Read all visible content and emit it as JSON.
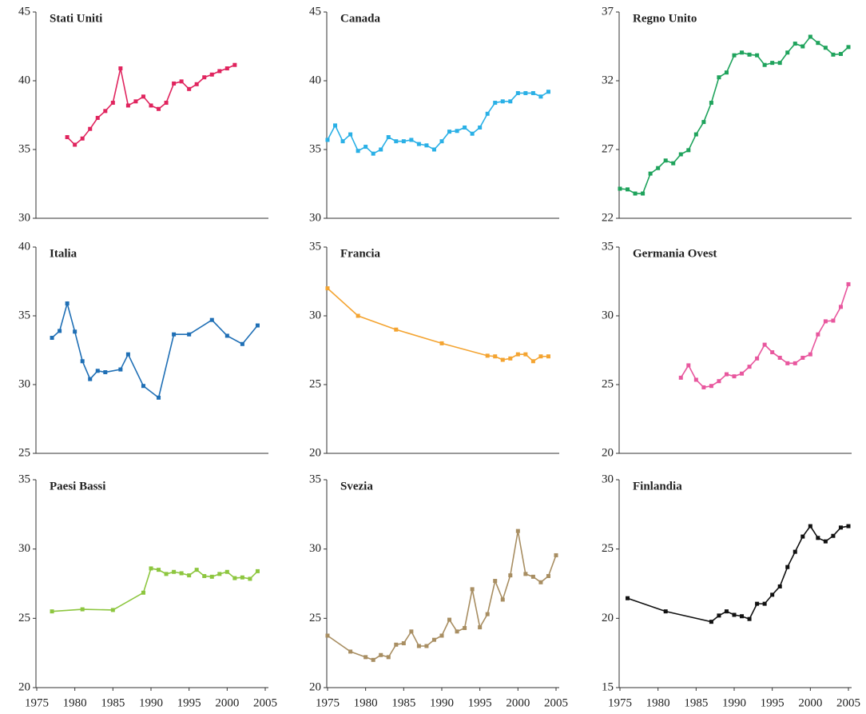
{
  "chart_data": [
    {
      "type": "line",
      "title": "Stati Uniti",
      "color": "#e0245e",
      "xlim": [
        1975,
        2005
      ],
      "ylim": [
        30,
        45
      ],
      "yticks": [
        30,
        35,
        40,
        45
      ],
      "x": [
        1979,
        1980,
        1981,
        1982,
        1983,
        1984,
        1985,
        1986,
        1987,
        1988,
        1989,
        1990,
        1991,
        1992,
        1993,
        1994,
        1995,
        1996,
        1997,
        1998,
        1999,
        2000,
        2001
      ],
      "values": [
        35.9,
        35.35,
        35.8,
        36.5,
        37.3,
        37.8,
        38.4,
        40.9,
        38.2,
        38.5,
        38.85,
        38.2,
        37.95,
        38.4,
        39.8,
        39.95,
        39.4,
        39.75,
        40.25,
        40.45,
        40.7,
        40.9,
        41.15
      ]
    },
    {
      "type": "line",
      "title": "Canada",
      "color": "#2ab0e6",
      "xlim": [
        1975,
        2005
      ],
      "ylim": [
        30,
        45
      ],
      "yticks": [
        30,
        35,
        40,
        45
      ],
      "x": [
        1975,
        1976,
        1977,
        1978,
        1979,
        1980,
        1981,
        1982,
        1983,
        1984,
        1985,
        1986,
        1987,
        1988,
        1989,
        1990,
        1991,
        1992,
        1993,
        1994,
        1995,
        1996,
        1997,
        1998,
        1999,
        2000,
        2001,
        2002,
        2003,
        2004
      ],
      "values": [
        35.7,
        36.75,
        35.6,
        36.1,
        34.9,
        35.2,
        34.7,
        35.0,
        35.9,
        35.6,
        35.6,
        35.7,
        35.4,
        35.3,
        35.0,
        35.6,
        36.3,
        36.35,
        36.6,
        36.15,
        36.6,
        37.6,
        38.4,
        38.5,
        38.5,
        39.1,
        39.1,
        39.1,
        38.85,
        39.2
      ]
    },
    {
      "type": "line",
      "title": "Regno Unito",
      "color": "#1fa35c",
      "xlim": [
        1975,
        2005
      ],
      "ylim": [
        22,
        37
      ],
      "yticks": [
        22,
        27,
        32,
        37
      ],
      "x": [
        1975,
        1976,
        1977,
        1978,
        1979,
        1980,
        1981,
        1982,
        1983,
        1984,
        1985,
        1986,
        1987,
        1988,
        1989,
        1990,
        1991,
        1992,
        1993,
        1994,
        1995,
        1996,
        1997,
        1998,
        1999,
        2000,
        2001,
        2002,
        2003,
        2004,
        2005
      ],
      "values": [
        24.15,
        24.1,
        23.8,
        23.8,
        25.25,
        25.65,
        26.2,
        26.0,
        26.65,
        26.95,
        28.1,
        29.0,
        30.4,
        32.25,
        32.6,
        33.85,
        34.05,
        33.9,
        33.85,
        33.15,
        33.3,
        33.3,
        34.05,
        34.7,
        34.5,
        35.2,
        34.75,
        34.4,
        33.9,
        33.95,
        34.45
      ]
    },
    {
      "type": "line",
      "title": "Italia",
      "color": "#1f6fb5",
      "xlim": [
        1975,
        2005
      ],
      "ylim": [
        25,
        40
      ],
      "yticks": [
        25,
        30,
        35,
        40
      ],
      "x": [
        1977,
        1978,
        1979,
        1980,
        1981,
        1982,
        1983,
        1984,
        1986,
        1987,
        1989,
        1991,
        1993,
        1995,
        1998,
        2000,
        2002,
        2004
      ],
      "values": [
        33.4,
        33.9,
        35.9,
        33.85,
        31.7,
        30.4,
        31.0,
        30.9,
        31.1,
        32.2,
        29.9,
        29.05,
        33.65,
        33.65,
        34.7,
        33.55,
        32.95,
        34.3
      ]
    },
    {
      "type": "line",
      "title": "Francia",
      "color": "#f4a431",
      "xlim": [
        1975,
        2005
      ],
      "ylim": [
        20,
        35
      ],
      "yticks": [
        20,
        25,
        30,
        35
      ],
      "x": [
        1975,
        1979,
        1984,
        1990,
        1996,
        1997,
        1998,
        1999,
        2000,
        2001,
        2002,
        2003,
        2004
      ],
      "values": [
        32.0,
        30.0,
        29.0,
        28.0,
        27.1,
        27.05,
        26.8,
        26.9,
        27.2,
        27.2,
        26.7,
        27.05,
        27.05
      ]
    },
    {
      "type": "line",
      "title": "Germania Ovest",
      "color": "#e8579e",
      "xlim": [
        1975,
        2005
      ],
      "ylim": [
        20,
        35
      ],
      "yticks": [
        20,
        25,
        30,
        35
      ],
      "x": [
        1983,
        1984,
        1985,
        1986,
        1987,
        1988,
        1989,
        1990,
        1991,
        1992,
        1993,
        1994,
        1995,
        1996,
        1997,
        1998,
        1999,
        2000,
        2001,
        2002,
        2003,
        2004,
        2005
      ],
      "values": [
        25.5,
        26.4,
        25.35,
        24.8,
        24.9,
        25.25,
        25.75,
        25.6,
        25.8,
        26.3,
        26.9,
        27.9,
        27.35,
        26.95,
        26.55,
        26.55,
        26.95,
        27.2,
        28.65,
        29.6,
        29.65,
        30.65,
        32.3
      ]
    },
    {
      "type": "line",
      "title": "Paesi Bassi",
      "color": "#8dc63f",
      "xlim": [
        1975,
        2005
      ],
      "ylim": [
        20,
        35
      ],
      "yticks": [
        20,
        25,
        30,
        35
      ],
      "xticks": [
        1975,
        1980,
        1985,
        1990,
        1995,
        2000,
        2005
      ],
      "x": [
        1977,
        1981,
        1985,
        1989,
        1990,
        1991,
        1992,
        1993,
        1994,
        1995,
        1996,
        1997,
        1998,
        1999,
        2000,
        2001,
        2002,
        2003,
        2004
      ],
      "values": [
        25.5,
        25.65,
        25.6,
        26.85,
        28.6,
        28.5,
        28.2,
        28.35,
        28.25,
        28.1,
        28.5,
        28.05,
        28.0,
        28.2,
        28.35,
        27.9,
        27.95,
        27.85,
        28.4
      ]
    },
    {
      "type": "line",
      "title": "Svezia",
      "color": "#a88e62",
      "xlim": [
        1975,
        2005
      ],
      "ylim": [
        20,
        35
      ],
      "yticks": [
        20,
        25,
        30,
        35
      ],
      "xticks": [
        1975,
        1980,
        1985,
        1990,
        1995,
        2000,
        2005
      ],
      "x": [
        1975,
        1978,
        1980,
        1981,
        1982,
        1983,
        1984,
        1985,
        1986,
        1987,
        1988,
        1989,
        1990,
        1991,
        1992,
        1993,
        1994,
        1995,
        1996,
        1997,
        1998,
        1999,
        2000,
        2001,
        2002,
        2003,
        2004,
        2005
      ],
      "values": [
        23.75,
        22.6,
        22.2,
        22.0,
        22.35,
        22.2,
        23.1,
        23.2,
        24.05,
        23.0,
        23.0,
        23.45,
        23.75,
        24.9,
        24.05,
        24.3,
        27.1,
        24.35,
        25.3,
        27.7,
        26.35,
        28.1,
        31.3,
        28.2,
        28.0,
        27.6,
        28.05,
        29.55
      ]
    },
    {
      "type": "line",
      "title": "Finlandia",
      "color": "#111111",
      "xlim": [
        1975,
        2005
      ],
      "ylim": [
        15,
        30
      ],
      "yticks": [
        15,
        20,
        25,
        30
      ],
      "xticks": [
        1975,
        1980,
        1985,
        1990,
        1995,
        2000,
        2005
      ],
      "x": [
        1976,
        1981,
        1987,
        1988,
        1989,
        1990,
        1991,
        1992,
        1993,
        1994,
        1995,
        1996,
        1997,
        1998,
        1999,
        2000,
        2001,
        2002,
        2003,
        2004,
        2005
      ],
      "values": [
        21.45,
        20.5,
        19.75,
        20.2,
        20.5,
        20.25,
        20.15,
        19.95,
        21.05,
        21.05,
        21.7,
        22.3,
        23.7,
        24.8,
        25.9,
        26.65,
        25.8,
        25.55,
        25.95,
        26.55,
        26.65
      ]
    }
  ]
}
